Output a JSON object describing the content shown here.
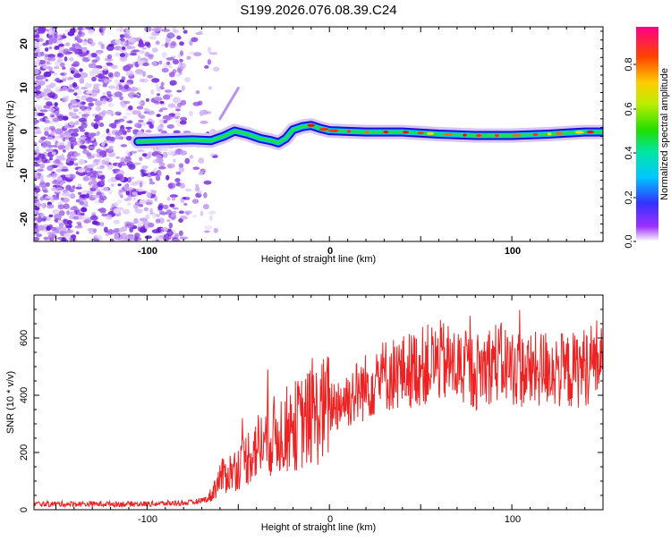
{
  "chart_data": [
    {
      "type": "heatmap",
      "title": "S199.2026.076.08.39.C24",
      "xlabel": "Height of straight line (km)",
      "ylabel": "Frequency (Hz)",
      "xlim": [
        -162,
        150
      ],
      "ylim": [
        -25,
        24
      ],
      "xticks": [
        "-100",
        "0",
        "100"
      ],
      "yticks": [
        "20",
        "10",
        "0",
        "-10",
        "-20"
      ],
      "colorbar": {
        "label": "Normalized spectral amplitude",
        "range": [
          0,
          0.97
        ],
        "ticks": [
          "0.0",
          "0.2",
          "0.4",
          "0.6",
          "0.8"
        ]
      },
      "signal_trace": [
        [
          -105,
          -2.2
        ],
        [
          -90,
          -2.0
        ],
        [
          -75,
          -1.8
        ],
        [
          -65,
          -2.0
        ],
        [
          -58,
          -1.0
        ],
        [
          -52,
          0.2
        ],
        [
          -45,
          -0.5
        ],
        [
          -38,
          -1.5
        ],
        [
          -32,
          -2.0
        ],
        [
          -28,
          -2.5
        ],
        [
          -24,
          -1.5
        ],
        [
          -20,
          0.5
        ],
        [
          -15,
          1.2
        ],
        [
          -10,
          1.5
        ],
        [
          -5,
          0.8
        ],
        [
          0,
          0.3
        ],
        [
          20,
          0.0
        ],
        [
          40,
          0.0
        ],
        [
          60,
          -0.5
        ],
        [
          80,
          -0.8
        ],
        [
          100,
          -0.8
        ],
        [
          120,
          -0.5
        ],
        [
          140,
          0.0
        ],
        [
          150,
          0.0
        ]
      ]
    },
    {
      "type": "line",
      "xlabel": "Height of straight line (km)",
      "ylabel": "SNR (10 * v/v)",
      "xlim": [
        -162,
        150
      ],
      "ylim": [
        0,
        750
      ],
      "xticks": [
        "-100",
        "0",
        "100"
      ],
      "yticks": [
        "0",
        "200",
        "400",
        "600"
      ],
      "series_color": "#ee2222",
      "trend": [
        [
          -162,
          20
        ],
        [
          -100,
          20
        ],
        [
          -75,
          25
        ],
        [
          -66,
          40
        ],
        [
          -60,
          110
        ],
        [
          -50,
          150
        ],
        [
          -40,
          220
        ],
        [
          -30,
          260
        ],
        [
          -20,
          290
        ],
        [
          -10,
          320
        ],
        [
          0,
          360
        ],
        [
          10,
          390
        ],
        [
          20,
          430
        ],
        [
          30,
          470
        ],
        [
          40,
          480
        ],
        [
          50,
          500
        ],
        [
          60,
          520
        ],
        [
          70,
          500
        ],
        [
          80,
          480
        ],
        [
          90,
          520
        ],
        [
          100,
          500
        ],
        [
          110,
          480
        ],
        [
          120,
          500
        ],
        [
          130,
          480
        ],
        [
          140,
          500
        ],
        [
          150,
          540
        ]
      ]
    }
  ]
}
